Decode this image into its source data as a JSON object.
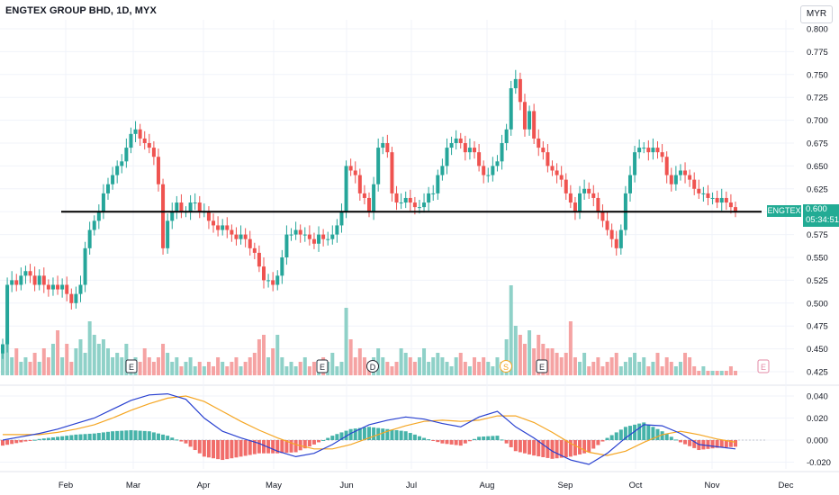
{
  "header": {
    "title": "ENGTEX GROUP BHD, 1D, MYX",
    "currency": "MYR"
  },
  "price_tag": {
    "ticker": "ENGTEX",
    "price": "0.600",
    "countdown": "05:34:51"
  },
  "colors": {
    "up": "#26a69a",
    "down": "#ef5350",
    "vol_up": "#8fd1c8",
    "vol_down": "#f5a3a3",
    "macd": "#2941d0",
    "signal": "#f5a623",
    "hist_pos": "#26a69a",
    "hist_neg": "#ef5350",
    "support_line": "#000000",
    "grid": "#f0f3fa",
    "axis_text": "#131722"
  },
  "event_markers": [
    {
      "label": "E",
      "date": "Feb 26"
    },
    {
      "label": "E",
      "date": "May 28"
    },
    {
      "label": "D",
      "date": "Jun 18"
    },
    {
      "label": "S",
      "date": "Aug 12"
    },
    {
      "label": "E",
      "date": "Aug 27"
    },
    {
      "label": "E",
      "date": "Nov 27"
    }
  ],
  "chart_data": [
    {
      "type": "candlestick",
      "title": "ENGTEX GROUP BHD, 1D, MYX",
      "x_months": [
        "Feb",
        "Mar",
        "Apr",
        "May",
        "Jun",
        "Jul",
        "Aug",
        "Sep",
        "Oct",
        "Nov",
        "Dec"
      ],
      "y_ticks": [
        "0.800",
        "0.775",
        "0.750",
        "0.725",
        "0.700",
        "0.675",
        "0.650",
        "0.625",
        "0.600",
        "0.575",
        "0.550",
        "0.525",
        "0.500",
        "0.475",
        "0.450",
        "0.425"
      ],
      "ylim": [
        0.42,
        0.805
      ],
      "support_level": 0.6,
      "last_price": 0.6,
      "close_series": [
        0.455,
        0.52,
        0.525,
        0.52,
        0.53,
        0.535,
        0.53,
        0.52,
        0.53,
        0.52,
        0.515,
        0.52,
        0.515,
        0.52,
        0.51,
        0.5,
        0.51,
        0.52,
        0.56,
        0.58,
        0.59,
        0.6,
        0.62,
        0.63,
        0.64,
        0.65,
        0.655,
        0.67,
        0.685,
        0.69,
        0.68,
        0.675,
        0.67,
        0.66,
        0.63,
        0.56,
        0.59,
        0.6,
        0.61,
        0.6,
        0.6,
        0.61,
        0.61,
        0.6,
        0.6,
        0.59,
        0.585,
        0.58,
        0.585,
        0.58,
        0.575,
        0.57,
        0.575,
        0.57,
        0.56,
        0.555,
        0.54,
        0.525,
        0.525,
        0.52,
        0.53,
        0.55,
        0.575,
        0.575,
        0.58,
        0.575,
        0.575,
        0.57,
        0.565,
        0.575,
        0.57,
        0.57,
        0.575,
        0.585,
        0.6,
        0.65,
        0.645,
        0.64,
        0.62,
        0.615,
        0.6,
        0.63,
        0.67,
        0.675,
        0.665,
        0.62,
        0.61,
        0.61,
        0.615,
        0.61,
        0.605,
        0.605,
        0.61,
        0.62,
        0.62,
        0.64,
        0.65,
        0.67,
        0.675,
        0.68,
        0.675,
        0.665,
        0.67,
        0.665,
        0.65,
        0.64,
        0.64,
        0.65,
        0.655,
        0.675,
        0.69,
        0.735,
        0.745,
        0.72,
        0.69,
        0.71,
        0.68,
        0.67,
        0.665,
        0.65,
        0.645,
        0.64,
        0.635,
        0.62,
        0.61,
        0.6,
        0.62,
        0.625,
        0.62,
        0.615,
        0.6,
        0.59,
        0.58,
        0.57,
        0.56,
        0.58,
        0.62,
        0.64,
        0.665,
        0.67,
        0.67,
        0.665,
        0.67,
        0.665,
        0.66,
        0.64,
        0.63,
        0.64,
        0.645,
        0.64,
        0.635,
        0.625,
        0.62,
        0.62,
        0.615,
        0.615,
        0.61,
        0.615,
        0.61,
        0.605,
        0.6
      ],
      "volume_series": [
        0.3,
        0.5,
        0.2,
        0.3,
        0.15,
        0.2,
        0.15,
        0.25,
        0.15,
        0.3,
        0.2,
        0.35,
        0.5,
        0.2,
        0.35,
        0.15,
        0.3,
        0.4,
        0.25,
        0.6,
        0.45,
        0.35,
        0.4,
        0.3,
        0.2,
        0.25,
        0.2,
        0.35,
        0.1,
        0.2,
        0.15,
        0.3,
        0.2,
        0.15,
        0.2,
        0.35,
        0.25,
        0.15,
        0.2,
        0.1,
        0.15,
        0.2,
        0.1,
        0.15,
        0.1,
        0.15,
        0.1,
        0.2,
        0.15,
        0.1,
        0.15,
        0.2,
        0.1,
        0.15,
        0.2,
        0.25,
        0.4,
        0.45,
        0.2,
        0.3,
        0.45,
        0.2,
        0.1,
        0.15,
        0.1,
        0.15,
        0.2,
        0.1,
        0.15,
        0.1,
        0.2,
        0.15,
        0.25,
        0.1,
        0.15,
        0.75,
        0.4,
        0.2,
        0.3,
        0.2,
        0.15,
        0.2,
        0.3,
        0.2,
        0.15,
        0.1,
        0.15,
        0.3,
        0.25,
        0.2,
        0.15,
        0.2,
        0.3,
        0.15,
        0.2,
        0.25,
        0.2,
        0.15,
        0.1,
        0.2,
        0.25,
        0.15,
        0.1,
        0.2,
        0.15,
        0.2,
        0.15,
        0.1,
        0.2,
        0.15,
        0.4,
        1.0,
        0.55,
        0.45,
        0.35,
        0.5,
        0.3,
        0.45,
        0.35,
        0.3,
        0.3,
        0.25,
        0.2,
        0.25,
        0.6,
        0.2,
        0.15,
        0.25,
        0.1,
        0.15,
        0.2,
        0.1,
        0.15,
        0.2,
        0.25,
        0.1,
        0.15,
        0.2,
        0.25,
        0.15,
        0.2,
        0.1,
        0.15,
        0.25,
        0.1,
        0.2,
        0.15,
        0.1,
        0.15,
        0.25,
        0.2,
        0.1,
        0.05,
        0.1,
        0.05,
        0.05,
        0.05,
        0.05,
        0.05,
        0.1,
        0.05,
        0.05
      ]
    },
    {
      "type": "line",
      "title": "",
      "y_ticks": [
        "0.040",
        "0.020",
        "0.000",
        "-0.020"
      ],
      "ylim": [
        -0.025,
        0.048
      ],
      "series": [
        {
          "values": [
            0.0,
            0.003,
            0.006,
            0.01,
            0.015,
            0.02,
            0.028,
            0.036,
            0.041,
            0.042,
            0.037,
            0.02,
            0.008,
            0.002,
            -0.003,
            -0.01,
            -0.015,
            -0.012,
            -0.004,
            0.006,
            0.014,
            0.018,
            0.021,
            0.019,
            0.015,
            0.012,
            0.021,
            0.026,
            0.012,
            0.002,
            -0.01,
            -0.018,
            -0.022,
            -0.012,
            0.002,
            0.014,
            0.013,
            0.006,
            -0.004,
            -0.006,
            -0.008
          ]
        },
        {
          "values": [
            0.005,
            0.005,
            0.005,
            0.007,
            0.01,
            0.014,
            0.02,
            0.027,
            0.033,
            0.038,
            0.04,
            0.035,
            0.026,
            0.017,
            0.009,
            0.002,
            -0.004,
            -0.008,
            -0.008,
            -0.004,
            0.002,
            0.008,
            0.013,
            0.017,
            0.018,
            0.017,
            0.018,
            0.022,
            0.022,
            0.016,
            0.007,
            -0.003,
            -0.011,
            -0.014,
            -0.01,
            -0.002,
            0.005,
            0.008,
            0.005,
            0.001,
            -0.002
          ]
        },
        {
          "values": [
            -0.005,
            -0.002,
            0.001,
            0.003,
            0.005,
            0.006,
            0.008,
            0.009,
            0.008,
            0.004,
            -0.003,
            -0.015,
            -0.018,
            -0.015,
            -0.012,
            -0.012,
            -0.011,
            -0.004,
            0.004,
            0.01,
            0.012,
            0.01,
            0.008,
            0.002,
            -0.003,
            -0.005,
            0.003,
            0.004,
            -0.01,
            -0.014,
            -0.017,
            -0.015,
            -0.011,
            0.002,
            0.012,
            0.016,
            0.008,
            -0.002,
            -0.009,
            -0.007,
            -0.006
          ]
        }
      ]
    }
  ]
}
